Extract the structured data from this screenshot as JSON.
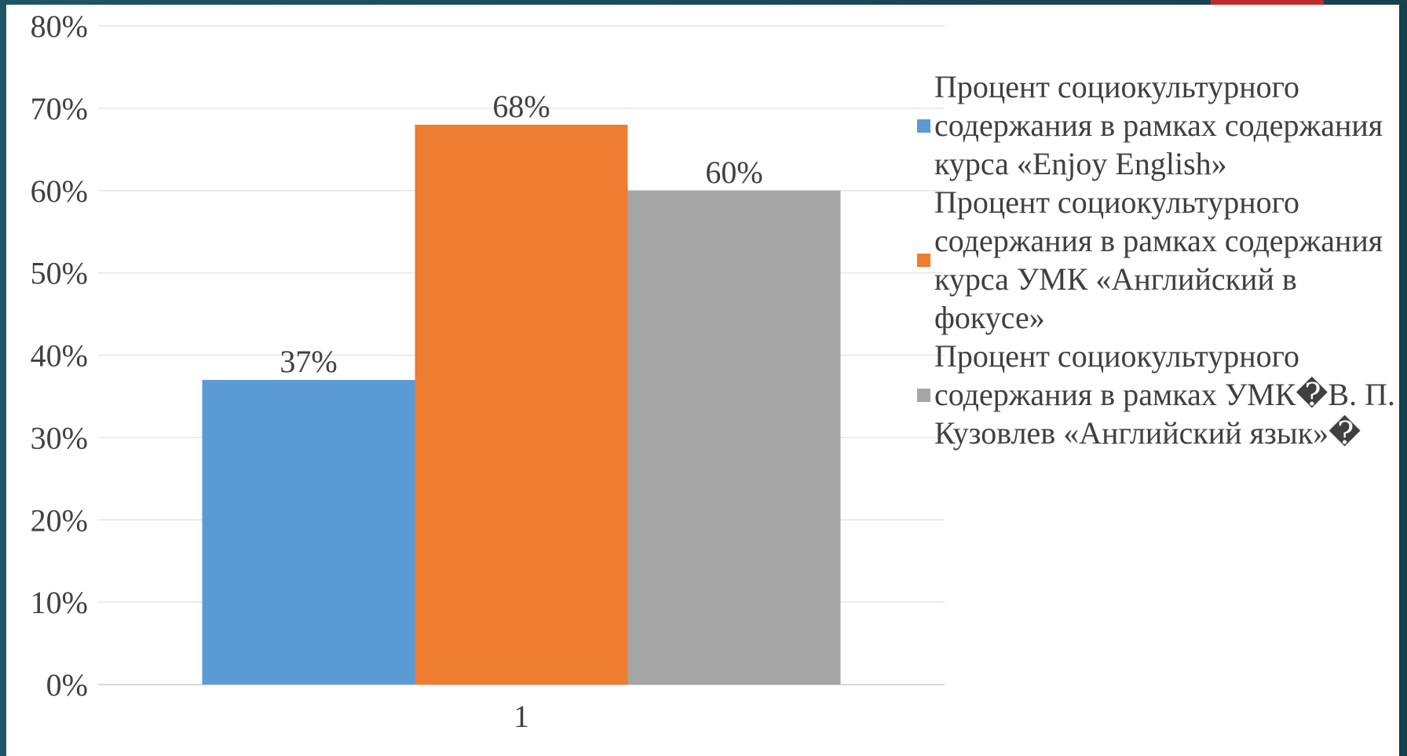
{
  "chart_data": {
    "type": "bar",
    "categories": [
      "1"
    ],
    "ylim": [
      0,
      0.8
    ],
    "yticks": [
      "0%",
      "10%",
      "20%",
      "30%",
      "40%",
      "50%",
      "60%",
      "70%",
      "80%"
    ],
    "grid": true,
    "legend_position": "right",
    "series": [
      {
        "name": "Процент социокультурного содержания в рамках содержания курса «Enjoy English»",
        "values": [
          0.37
        ],
        "labels": [
          "37%"
        ],
        "color": "#5b9bd5"
      },
      {
        "name": "Процент социокультурного содержания в рамках содержания курса УМК «Английский в фокусе»",
        "values": [
          0.68
        ],
        "labels": [
          "68%"
        ],
        "color": "#ed7d31"
      },
      {
        "name": "Процент социокультурного содержания в рамках УМК�В. П. Кузовлев «Английский язык»�",
        "values": [
          0.6
        ],
        "labels": [
          "60%"
        ],
        "color": "#a5a5a5"
      }
    ]
  }
}
